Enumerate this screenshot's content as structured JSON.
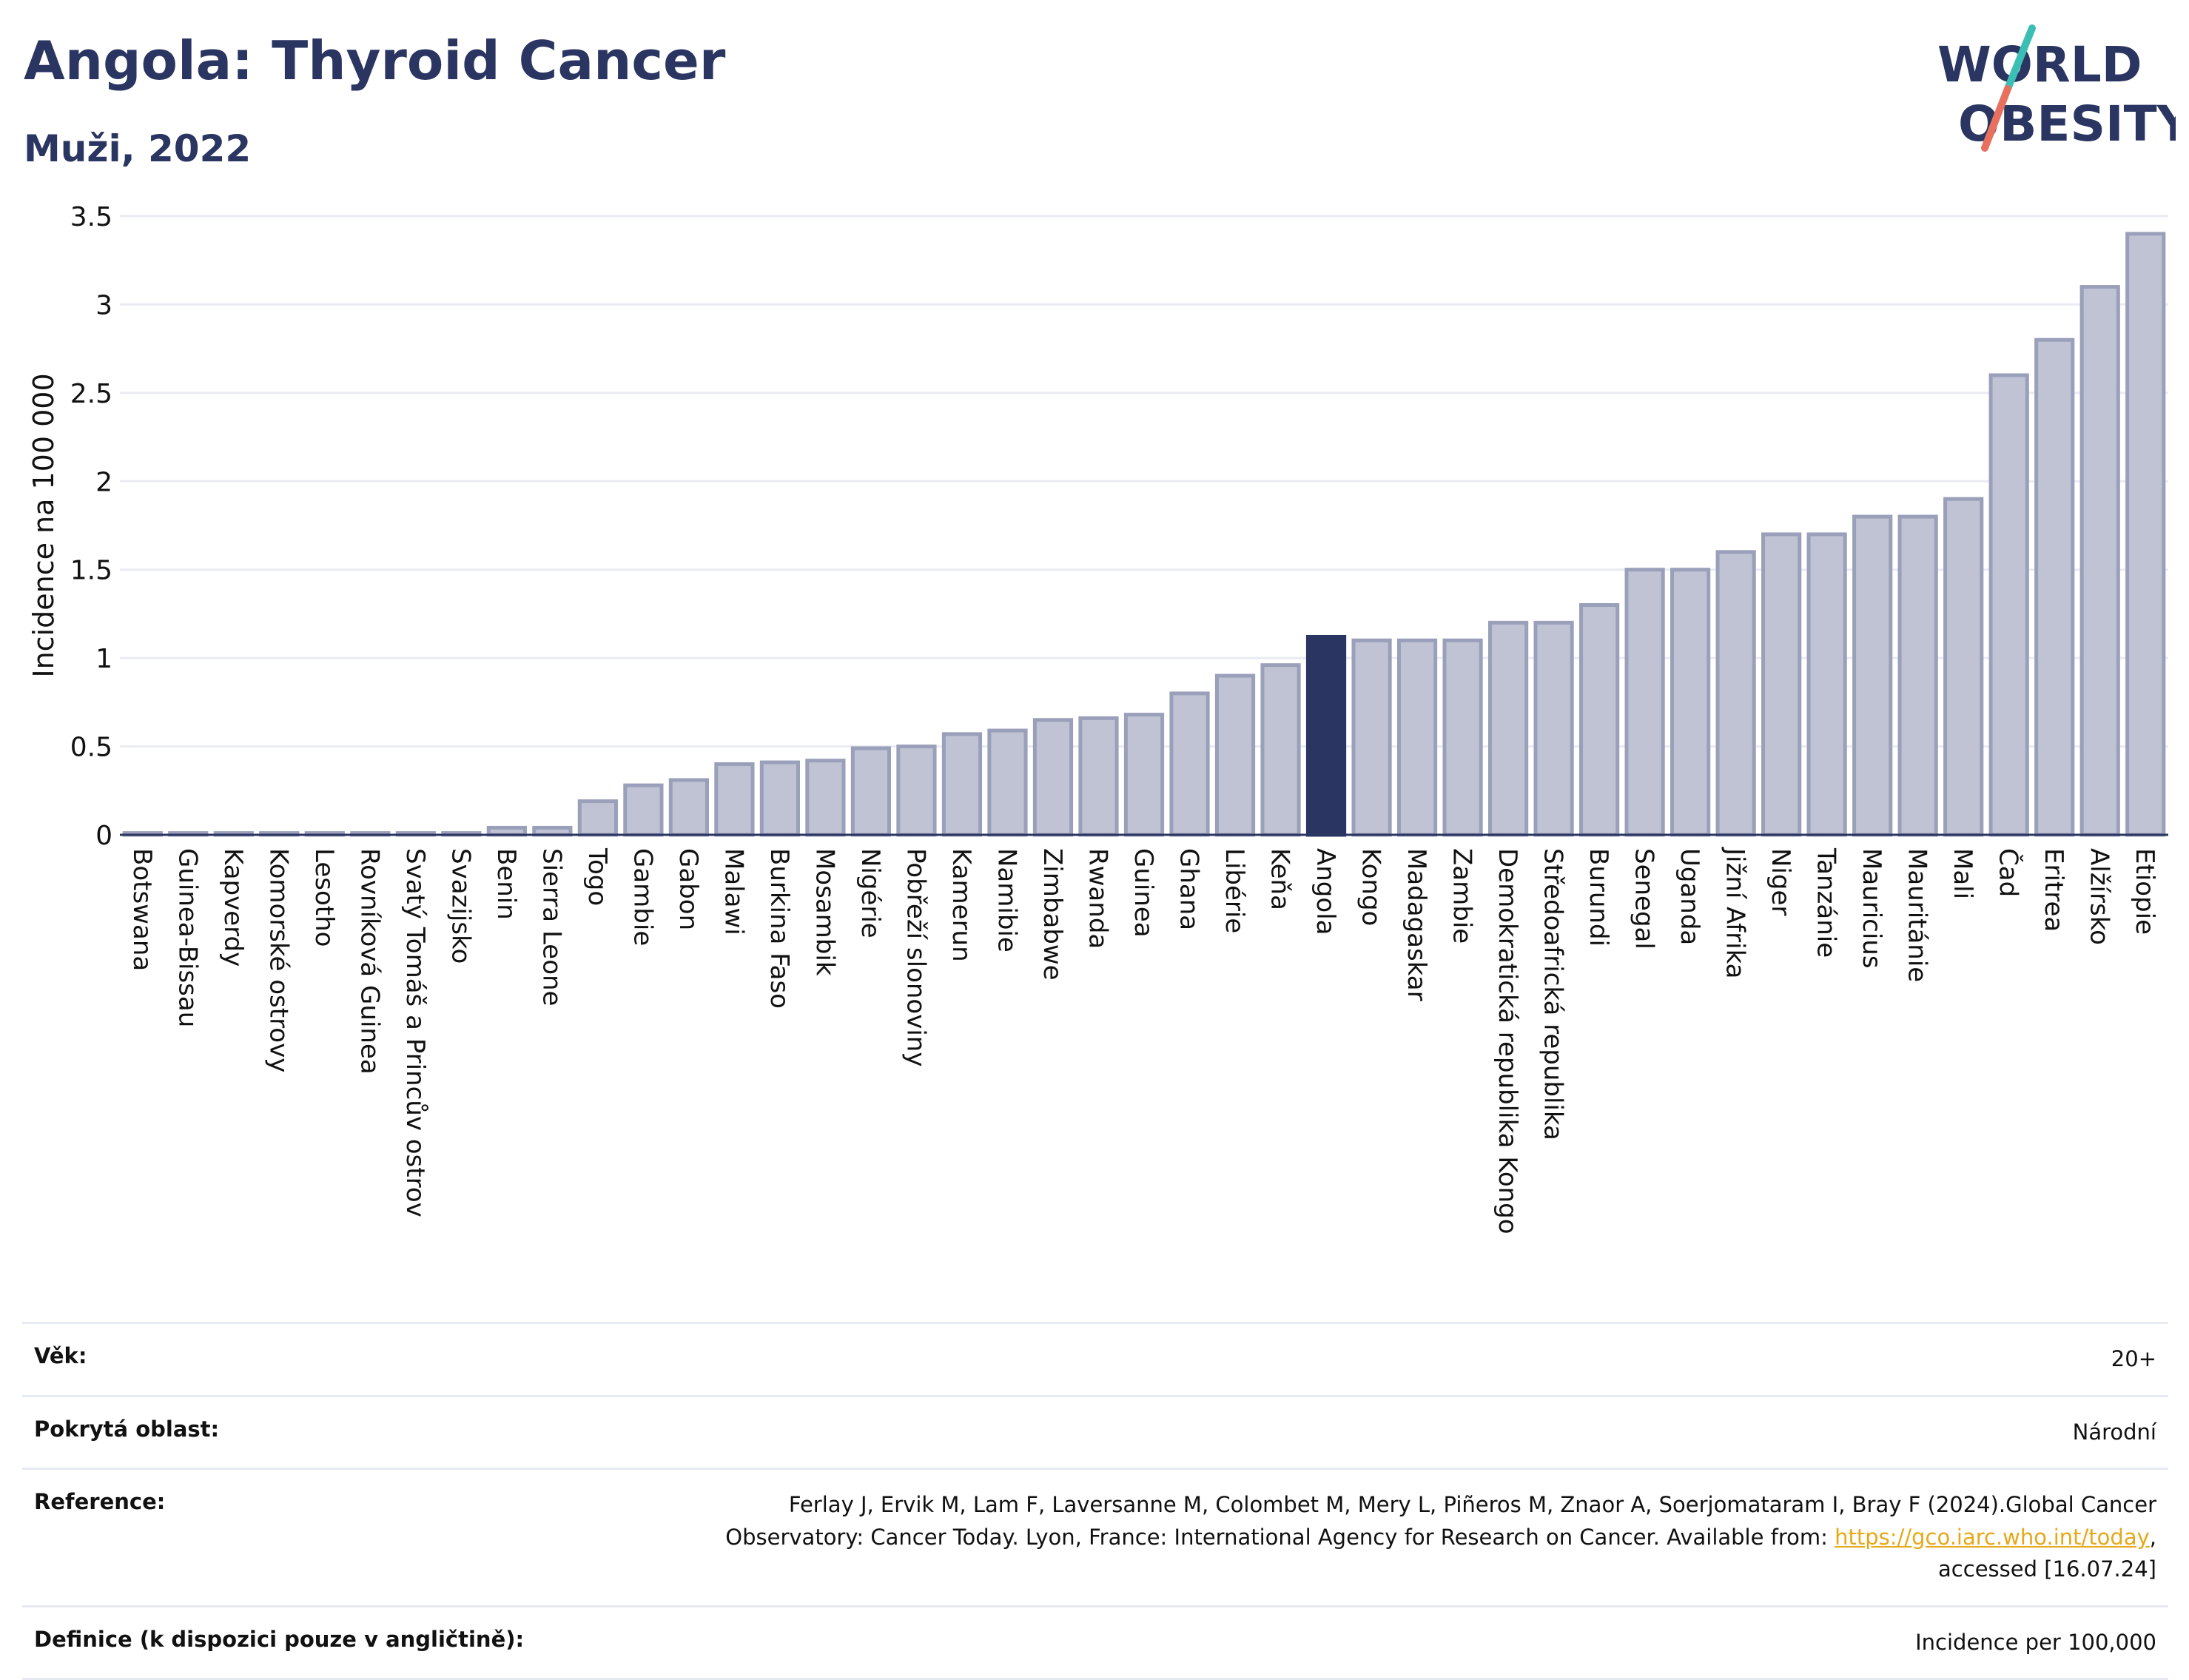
{
  "header": {
    "title": "Angola: Thyroid Cancer",
    "subtitle": "Muži, 2022"
  },
  "logo": {
    "line1": "WORLD",
    "line2": "OBESITY"
  },
  "colors": {
    "title": "#2a3561",
    "bar_default": "#c0c3d3",
    "bar_default_stroke": "#9aa0ba",
    "bar_highlight": "#2a3561",
    "logo_teal": "#3bbfb5",
    "logo_coral": "#e8705f",
    "link": "#e6a817"
  },
  "chart_data": {
    "type": "bar",
    "ylabel": "Incidence na 100 000",
    "ylim": [
      0,
      3.5
    ],
    "yticks": [
      0,
      0.5,
      1,
      1.5,
      2,
      2.5,
      3,
      3.5
    ],
    "highlight": "Angola",
    "grid": true,
    "categories": [
      "Botswana",
      "Guinea-Bissau",
      "Kapverdy",
      "Komorské ostrovy",
      "Lesotho",
      "Rovníková Guinea",
      "Svatý Tomáš a Princův ostrov",
      "Svazijsko",
      "Benin",
      "Sierra Leone",
      "Togo",
      "Gambie",
      "Gabon",
      "Malawi",
      "Burkina Faso",
      "Mosambik",
      "Nigérie",
      "Pobřeží slonoviny",
      "Kamerun",
      "Namibie",
      "Zimbabwe",
      "Rwanda",
      "Guinea",
      "Ghana",
      "Libérie",
      "Keňa",
      "Angola",
      "Kongo",
      "Madagaskar",
      "Zambie",
      "Demokratická republika Kongo",
      "Středoafrická republika",
      "Burundi",
      "Senegal",
      "Uganda",
      "Jižní Afrika",
      "Niger",
      "Tanzánie",
      "Mauricius",
      "Mauritánie",
      "Mali",
      "Čad",
      "Eritrea",
      "Alžírsko",
      "Etiopie"
    ],
    "values": [
      0.01,
      0.01,
      0.01,
      0.01,
      0.01,
      0.01,
      0.01,
      0.01,
      0.04,
      0.04,
      0.19,
      0.28,
      0.31,
      0.4,
      0.41,
      0.42,
      0.49,
      0.5,
      0.57,
      0.59,
      0.65,
      0.66,
      0.68,
      0.8,
      0.9,
      0.96,
      1.12,
      1.1,
      1.1,
      1.1,
      1.2,
      1.2,
      1.3,
      1.5,
      1.5,
      1.6,
      1.7,
      1.7,
      1.8,
      1.8,
      1.9,
      2.6,
      2.8,
      3.1,
      3.4
    ]
  },
  "info": {
    "rows": [
      {
        "label": "Věk:",
        "value": "20+"
      },
      {
        "label": "Pokrytá oblast:",
        "value": "Národní"
      },
      {
        "label": "Reference:",
        "value_before": "Ferlay J, Ervik M, Lam F, Laversanne M, Colombet M, Mery L, Piñeros M, Znaor A, Soerjomataram I, Bray F (2024).Global Cancer Observatory: Cancer Today. Lyon, France: International Agency for Research on Cancer. Available from: ",
        "link": "https://gco.iarc.who.int/today",
        "value_after": ", accessed [16.07.24]"
      },
      {
        "label": "Definice (k dispozici pouze v angličtině):",
        "value": "Incidence per 100,000"
      }
    ]
  }
}
